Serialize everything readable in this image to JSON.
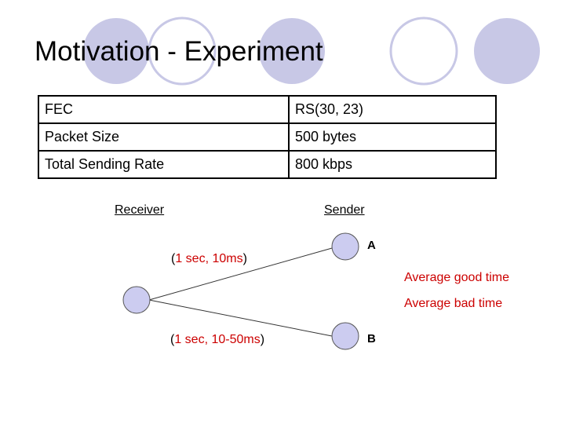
{
  "slide": {
    "title": "Motivation - Experiment"
  },
  "params_table": {
    "rows": [
      {
        "key": "FEC",
        "value": "RS(30, 23)"
      },
      {
        "key": "Packet Size",
        "value": "500 bytes"
      },
      {
        "key": "Total Sending Rate",
        "value": "800 kbps"
      }
    ]
  },
  "diagram": {
    "receiver_label": "Receiver",
    "sender_label": "Sender",
    "node_a_label": "A",
    "node_b_label": "B",
    "link_a": {
      "open": "(",
      "value": "1 sec, 10ms",
      "close": ")"
    },
    "link_b": {
      "open": "(",
      "value": "1 sec, 10-50ms",
      "close": ")"
    },
    "legend_good": "Average good time",
    "legend_bad": "Average bad time"
  },
  "colors": {
    "node_fill": "#ccccf0",
    "decor_circle": "#c8c8e6",
    "accent_red": "#cc0000"
  }
}
